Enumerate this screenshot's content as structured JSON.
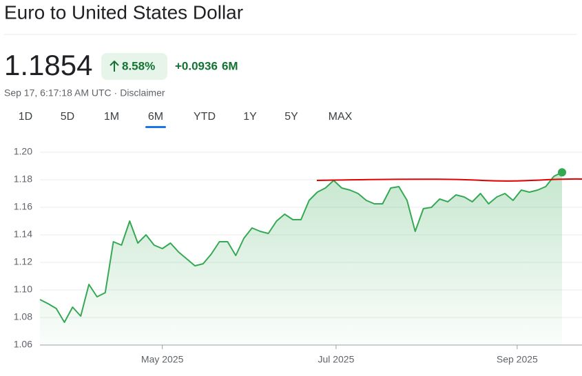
{
  "header": {
    "title": "Euro to United States Dollar"
  },
  "quote": {
    "price": "1.1854",
    "change_percent": "8.58%",
    "change": "+0.0936",
    "period": "6M",
    "timestamp": "Sep 17, 6:17:18 AM UTC ·",
    "disclaimer": "Disclaimer"
  },
  "tabs": {
    "items": [
      "1D",
      "5D",
      "1M",
      "6M",
      "YTD",
      "1Y",
      "5Y",
      "MAX"
    ],
    "selected": 3
  },
  "chart_data": {
    "type": "line",
    "categories": [
      null,
      null,
      null,
      null,
      null,
      null,
      null,
      null,
      null,
      null,
      null,
      null,
      null,
      null,
      null,
      null,
      null,
      null,
      null,
      null,
      null,
      null,
      null,
      null,
      null,
      null,
      null,
      null,
      null,
      null,
      null,
      null,
      null,
      null,
      null,
      null,
      null,
      null,
      null,
      null,
      null,
      null,
      null,
      null,
      null,
      null,
      null,
      null,
      null,
      null,
      null,
      null,
      null,
      null,
      null,
      null,
      null,
      null,
      null,
      null,
      null,
      null,
      null,
      null,
      null
    ],
    "values": [
      1.093,
      1.09,
      1.0865,
      1.0765,
      1.0875,
      1.081,
      1.104,
      1.095,
      1.098,
      1.135,
      1.1325,
      1.15,
      1.134,
      1.14,
      1.1325,
      1.13,
      1.134,
      1.1275,
      1.1225,
      1.1175,
      1.119,
      1.126,
      1.135,
      1.135,
      1.125,
      1.1375,
      1.145,
      1.1425,
      1.141,
      1.15,
      1.155,
      1.151,
      1.151,
      1.165,
      1.171,
      1.174,
      1.1795,
      1.174,
      1.1725,
      1.17,
      1.165,
      1.1625,
      1.1625,
      1.174,
      1.175,
      1.165,
      1.1425,
      1.159,
      1.16,
      1.166,
      1.164,
      1.169,
      1.1675,
      1.164,
      1.17,
      1.1625,
      1.1675,
      1.17,
      1.165,
      1.1725,
      1.171,
      1.1725,
      1.175,
      1.1825,
      1.1854
    ],
    "color": "#34a853",
    "xlim": [
      0,
      64
    ],
    "xticks": [
      {
        "value": 15,
        "label": "May 2025"
      },
      {
        "value": 36.3,
        "label": "Jul 2025"
      },
      {
        "value": 58.5,
        "label": "Sep 2025"
      }
    ],
    "ylim": [
      1.06,
      1.2
    ],
    "yticks": [
      1.06,
      1.08,
      {
        "value": 1.1,
        "label": "1.10"
      },
      1.12,
      1.14,
      1.16,
      1.18,
      {
        "value": 1.2,
        "label": "1.20"
      }
    ],
    "grid": true
  }
}
